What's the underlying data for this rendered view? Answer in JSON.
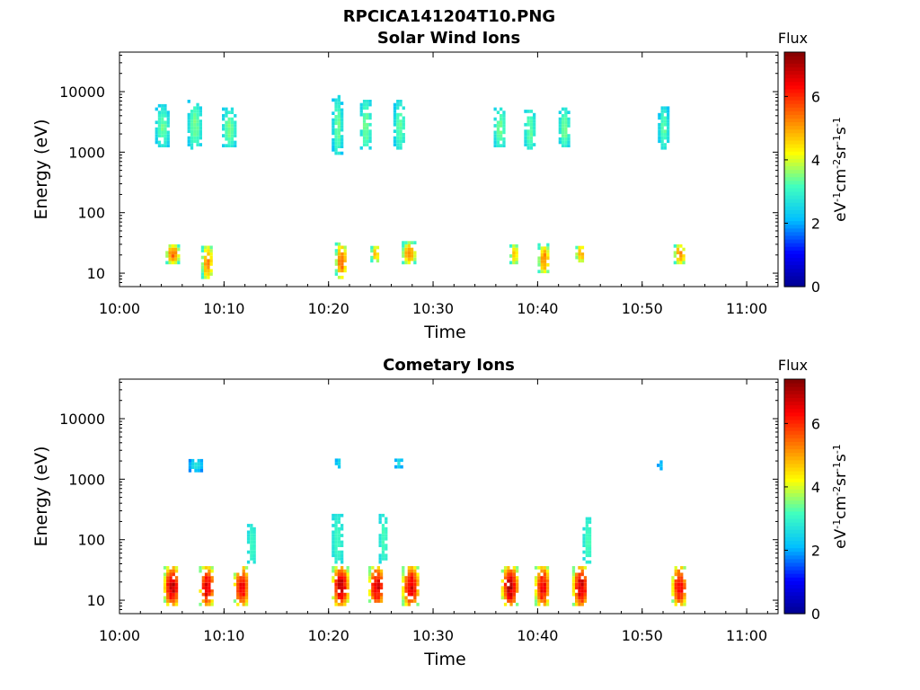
{
  "figure_title": "RPCICA141204T10.PNG",
  "colormap": [
    "#00008f",
    "#0000ff",
    "#00bfff",
    "#40ffbf",
    "#ffff00",
    "#ff8000",
    "#ff0000",
    "#800000"
  ],
  "chart_data": [
    {
      "type": "heatmap",
      "title": "Solar Wind Ions",
      "xlabel": "Time",
      "ylabel": "Energy (eV)",
      "x_ticks": [
        "10:00",
        "10:10",
        "10:20",
        "10:30",
        "10:40",
        "10:50",
        "11:00"
      ],
      "x_range_min": [
        0,
        63
      ],
      "y_scale": "log",
      "y_range": [
        6,
        45000
      ],
      "y_ticks": [
        {
          "value": 10,
          "label": "10"
        },
        {
          "value": 100,
          "label": "100"
        },
        {
          "value": 1000,
          "label": "1000"
        },
        {
          "value": 10000,
          "label": "10000"
        }
      ],
      "colorbar": {
        "title": "Flux",
        "label": "eV-1cm-2sr-1s-1",
        "range": [
          0,
          7.4
        ],
        "ticks": [
          "0",
          "2",
          "4",
          "6"
        ]
      },
      "blobs": [
        {
          "t": [
            3.4,
            4.6
          ],
          "e": [
            1200,
            5500
          ],
          "z": [
            2.3,
            3.5
          ]
        },
        {
          "t": [
            6.5,
            7.7
          ],
          "e": [
            1100,
            7000
          ],
          "z": [
            2.3,
            3.6
          ]
        },
        {
          "t": [
            9.8,
            11.0
          ],
          "e": [
            1200,
            5000
          ],
          "z": [
            2.4,
            3.6
          ]
        },
        {
          "t": [
            20.3,
            21.2
          ],
          "e": [
            900,
            8000
          ],
          "z": [
            2.2,
            3.6
          ]
        },
        {
          "t": [
            23.0,
            23.9
          ],
          "e": [
            1100,
            7000
          ],
          "z": [
            2.5,
            3.6
          ]
        },
        {
          "t": [
            26.2,
            27.2
          ],
          "e": [
            1100,
            7000
          ],
          "z": [
            2.3,
            3.5
          ]
        },
        {
          "t": [
            35.8,
            36.8
          ],
          "e": [
            1200,
            5000
          ],
          "z": [
            2.5,
            3.6
          ]
        },
        {
          "t": [
            38.7,
            39.6
          ],
          "e": [
            1100,
            5000
          ],
          "z": [
            2.5,
            3.5
          ]
        },
        {
          "t": [
            42.0,
            42.9
          ],
          "e": [
            1200,
            5000
          ],
          "z": [
            2.5,
            3.6
          ]
        },
        {
          "t": [
            51.5,
            52.4
          ],
          "e": [
            1100,
            5500
          ],
          "z": [
            2.2,
            3.5
          ]
        },
        {
          "t": [
            4.4,
            5.6
          ],
          "e": [
            14,
            28
          ],
          "z": [
            3.0,
            5.8
          ]
        },
        {
          "t": [
            7.8,
            8.8
          ],
          "e": [
            8,
            28
          ],
          "z": [
            3.0,
            5.5
          ]
        },
        {
          "t": [
            20.6,
            21.6
          ],
          "e": [
            8,
            30
          ],
          "z": [
            3.0,
            5.8
          ]
        },
        {
          "t": [
            24.0,
            24.8
          ],
          "e": [
            15,
            28
          ],
          "z": [
            3.0,
            5.0
          ]
        },
        {
          "t": [
            27.0,
            28.2
          ],
          "e": [
            14,
            30
          ],
          "z": [
            3.0,
            5.6
          ]
        },
        {
          "t": [
            37.3,
            38.0
          ],
          "e": [
            14,
            28
          ],
          "z": [
            3.0,
            5.0
          ]
        },
        {
          "t": [
            40.0,
            41.0
          ],
          "e": [
            10,
            28
          ],
          "z": [
            3.0,
            5.5
          ]
        },
        {
          "t": [
            43.6,
            44.4
          ],
          "e": [
            15,
            28
          ],
          "z": [
            3.2,
            5.2
          ]
        },
        {
          "t": [
            53.0,
            54.0
          ],
          "e": [
            14,
            28
          ],
          "z": [
            3.0,
            5.6
          ]
        }
      ]
    },
    {
      "type": "heatmap",
      "title": "Cometary Ions",
      "xlabel": "Time",
      "ylabel": "Energy (eV)",
      "x_ticks": [
        "10:00",
        "10:10",
        "10:20",
        "10:30",
        "10:40",
        "10:50",
        "11:00"
      ],
      "x_range_min": [
        0,
        63
      ],
      "y_scale": "log",
      "y_range": [
        6,
        45000
      ],
      "y_ticks": [
        {
          "value": 10,
          "label": "10"
        },
        {
          "value": 100,
          "label": "100"
        },
        {
          "value": 1000,
          "label": "1000"
        },
        {
          "value": 10000,
          "label": "10000"
        }
      ],
      "colorbar": {
        "title": "Flux",
        "label": "eV-1cm-2sr-1s-1",
        "range": [
          0,
          7.4
        ],
        "ticks": [
          "0",
          "2",
          "4",
          "6"
        ]
      },
      "blobs": [
        {
          "t": [
            4.2,
            5.6
          ],
          "e": [
            8,
            35
          ],
          "z": [
            3.5,
            7.2
          ]
        },
        {
          "t": [
            7.6,
            8.9
          ],
          "e": [
            8,
            35
          ],
          "z": [
            3.5,
            7.0
          ]
        },
        {
          "t": [
            10.9,
            12.2
          ],
          "e": [
            8,
            35
          ],
          "z": [
            3.5,
            6.8
          ]
        },
        {
          "t": [
            20.3,
            21.8
          ],
          "e": [
            8,
            35
          ],
          "z": [
            3.5,
            7.2
          ]
        },
        {
          "t": [
            23.8,
            25.2
          ],
          "e": [
            8,
            35
          ],
          "z": [
            3.5,
            7.0
          ]
        },
        {
          "t": [
            27.0,
            28.5
          ],
          "e": [
            8,
            35
          ],
          "z": [
            3.5,
            7.0
          ]
        },
        {
          "t": [
            36.5,
            38.0
          ],
          "e": [
            8,
            35
          ],
          "z": [
            3.5,
            7.2
          ]
        },
        {
          "t": [
            39.7,
            41.0
          ],
          "e": [
            8,
            35
          ],
          "z": [
            3.5,
            6.8
          ]
        },
        {
          "t": [
            43.3,
            44.7
          ],
          "e": [
            8,
            35
          ],
          "z": [
            3.5,
            7.2
          ]
        },
        {
          "t": [
            52.8,
            54.1
          ],
          "e": [
            8,
            35
          ],
          "z": [
            3.5,
            6.8
          ]
        },
        {
          "t": [
            6.6,
            7.8
          ],
          "e": [
            1300,
            2100
          ],
          "z": [
            1.8,
            2.8
          ]
        },
        {
          "t": [
            20.6,
            21.0
          ],
          "e": [
            1500,
            2100
          ],
          "z": [
            2.0,
            2.7
          ]
        },
        {
          "t": [
            26.3,
            26.9
          ],
          "e": [
            1500,
            2100
          ],
          "z": [
            2.0,
            2.8
          ]
        },
        {
          "t": [
            51.4,
            51.9
          ],
          "e": [
            1400,
            1900
          ],
          "z": [
            1.8,
            2.3
          ]
        },
        {
          "t": [
            20.3,
            21.2
          ],
          "e": [
            40,
            250
          ],
          "z": [
            2.6,
            3.2
          ]
        },
        {
          "t": [
            24.8,
            25.5
          ],
          "e": [
            40,
            260
          ],
          "z": [
            2.6,
            3.3
          ]
        },
        {
          "t": [
            44.3,
            45.1
          ],
          "e": [
            40,
            230
          ],
          "z": [
            2.6,
            3.3
          ]
        },
        {
          "t": [
            12.2,
            12.9
          ],
          "e": [
            40,
            170
          ],
          "z": [
            2.6,
            3.2
          ]
        }
      ]
    }
  ]
}
